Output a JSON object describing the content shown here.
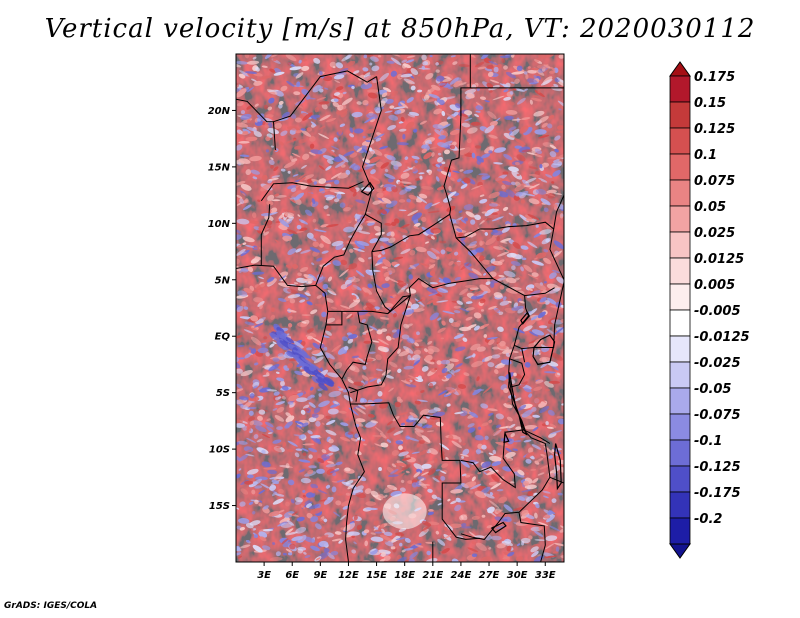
{
  "title": "Vertical velocity [m/s] at 850hPa, VT: 2020030112",
  "footer": "GrADS: IGES/COLA",
  "map": {
    "lat_range": [
      -20,
      25
    ],
    "lon_range": [
      0,
      35
    ],
    "lat_ticks": [
      {
        "value": 20,
        "label": "20N"
      },
      {
        "value": 15,
        "label": "15N"
      },
      {
        "value": 10,
        "label": "10N"
      },
      {
        "value": 5,
        "label": "5N"
      },
      {
        "value": 0,
        "label": "EQ"
      },
      {
        "value": -5,
        "label": "5S"
      },
      {
        "value": -10,
        "label": "10S"
      },
      {
        "value": -15,
        "label": "15S"
      }
    ],
    "lon_ticks": [
      {
        "value": 3,
        "label": "3E"
      },
      {
        "value": 6,
        "label": "6E"
      },
      {
        "value": 9,
        "label": "9E"
      },
      {
        "value": 12,
        "label": "12E"
      },
      {
        "value": 15,
        "label": "15E"
      },
      {
        "value": 18,
        "label": "18E"
      },
      {
        "value": 21,
        "label": "21E"
      },
      {
        "value": 24,
        "label": "24E"
      },
      {
        "value": 27,
        "label": "27E"
      },
      {
        "value": 30,
        "label": "30E"
      },
      {
        "value": 33,
        "label": "33E"
      }
    ]
  },
  "colorbar": {
    "levels": [
      {
        "label": "0.175",
        "color": "#b2182b"
      },
      {
        "label": "0.15",
        "color": "#c43a3a"
      },
      {
        "label": "0.125",
        "color": "#d55050"
      },
      {
        "label": "0.1",
        "color": "#e16868"
      },
      {
        "label": "0.075",
        "color": "#ea8484"
      },
      {
        "label": "0.05",
        "color": "#f2a3a3"
      },
      {
        "label": "0.025",
        "color": "#f8c4c4"
      },
      {
        "label": "0.0125",
        "color": "#fbdcdc"
      },
      {
        "label": "0.005",
        "color": "#fdeeee"
      },
      {
        "label": "-0.005",
        "color": "#ffffff"
      },
      {
        "label": "-0.0125",
        "color": "#e6e6fb"
      },
      {
        "label": "-0.025",
        "color": "#c9c9f4"
      },
      {
        "label": "-0.05",
        "color": "#a9a9ec"
      },
      {
        "label": "-0.075",
        "color": "#8b8be2"
      },
      {
        "label": "-0.1",
        "color": "#6d6dd6"
      },
      {
        "label": "-0.125",
        "color": "#4f4fc8"
      },
      {
        "label": "-0.175",
        "color": "#3333b8"
      },
      {
        "label": "-0.2",
        "color": "#1d1da6"
      }
    ],
    "top_cap_color": "#a50f15",
    "bottom_cap_color": "#12128f"
  }
}
